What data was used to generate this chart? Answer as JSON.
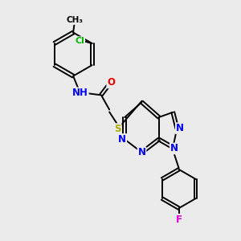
{
  "background_color": "#ebebeb",
  "atom_colors": {
    "N": "#0000ee",
    "O": "#ee0000",
    "S": "#aaaa00",
    "Cl": "#00bb00",
    "F": "#dd00dd",
    "C": "#000000",
    "H": "#000000"
  },
  "figsize": [
    3.0,
    3.0
  ],
  "dpi": 100
}
